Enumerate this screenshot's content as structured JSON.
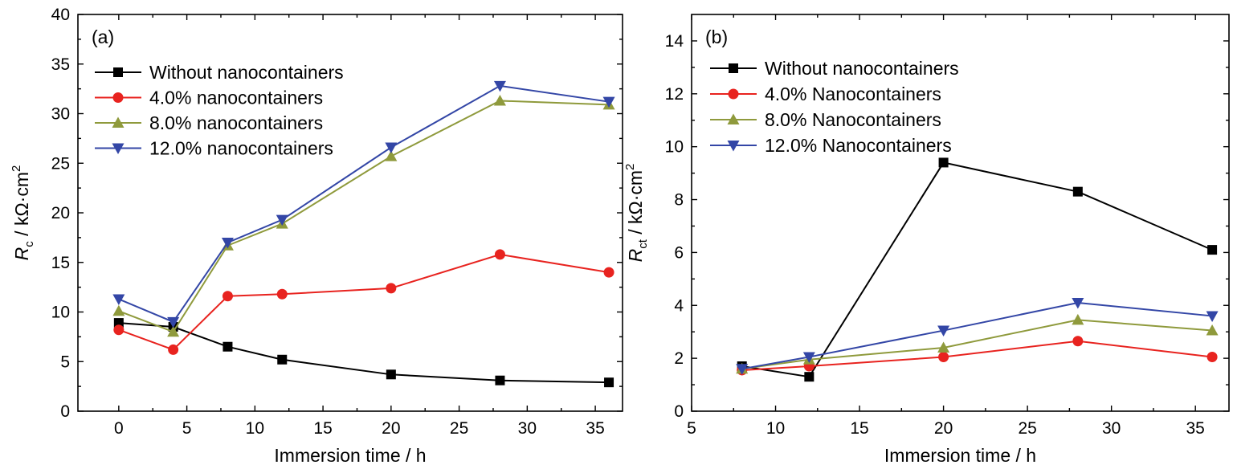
{
  "chart_data": [
    {
      "type": "line",
      "panel_label": "(a)",
      "xlabel": "Immersion time / h",
      "ylabel": {
        "symbol": "R",
        "subscript": "c",
        "unit": " / kΩ·cm",
        "superscript": "2"
      },
      "xlim": [
        -3,
        37
      ],
      "ylim": [
        0,
        40
      ],
      "xticks": [
        0,
        5,
        10,
        15,
        20,
        25,
        30,
        35
      ],
      "yticks": [
        0,
        5,
        10,
        15,
        20,
        25,
        30,
        35,
        40
      ],
      "legend_position": "top-left",
      "series": [
        {
          "name": "Without nanocontainers",
          "color": "#000000",
          "marker": "square",
          "x": [
            0,
            4,
            8,
            12,
            20,
            28,
            36
          ],
          "y": [
            8.9,
            8.5,
            6.5,
            5.2,
            3.7,
            3.1,
            2.9
          ]
        },
        {
          "name": "4.0% nanocontainers",
          "color": "#e8231f",
          "marker": "circle",
          "x": [
            0,
            4,
            8,
            12,
            20,
            28,
            36
          ],
          "y": [
            8.2,
            6.2,
            11.6,
            11.8,
            12.4,
            15.8,
            14.0
          ]
        },
        {
          "name": "8.0% nanocontainers",
          "color": "#8f9a3c",
          "marker": "triangle-up",
          "x": [
            0,
            4,
            8,
            12,
            20,
            28,
            36
          ],
          "y": [
            10.1,
            8.0,
            16.7,
            18.9,
            25.7,
            31.3,
            30.9
          ]
        },
        {
          "name": "12.0% nanocontainers",
          "color": "#3346a6",
          "marker": "triangle-down",
          "x": [
            0,
            4,
            8,
            12,
            20,
            28,
            36
          ],
          "y": [
            11.3,
            9.0,
            17.0,
            19.3,
            26.6,
            32.8,
            31.2
          ]
        }
      ]
    },
    {
      "type": "line",
      "panel_label": "(b)",
      "xlabel": "Immersion time / h",
      "ylabel": {
        "symbol": "R",
        "subscript": "ct",
        "unit": " / kΩ·cm",
        "superscript": "2"
      },
      "xlim": [
        5,
        37
      ],
      "ylim": [
        0,
        15
      ],
      "xticks": [
        5,
        10,
        15,
        20,
        25,
        30,
        35
      ],
      "yticks": [
        0,
        2,
        4,
        6,
        8,
        10,
        12,
        14
      ],
      "legend_position": "top-left",
      "series": [
        {
          "name": "Without nanocontainers",
          "color": "#000000",
          "marker": "square",
          "x": [
            8,
            12,
            20,
            28,
            36
          ],
          "y": [
            1.7,
            1.3,
            9.4,
            8.3,
            6.1
          ]
        },
        {
          "name": "4.0% Nanocontainers",
          "color": "#e8231f",
          "marker": "circle",
          "x": [
            8,
            12,
            20,
            28,
            36
          ],
          "y": [
            1.55,
            1.7,
            2.05,
            2.65,
            2.05
          ]
        },
        {
          "name": "8.0% Nanocontainers",
          "color": "#8f9a3c",
          "marker": "triangle-up",
          "x": [
            8,
            12,
            20,
            28,
            36
          ],
          "y": [
            1.6,
            1.95,
            2.4,
            3.45,
            3.05
          ]
        },
        {
          "name": "12.0% Nanocontainers",
          "color": "#3346a6",
          "marker": "triangle-down",
          "x": [
            8,
            12,
            20,
            28,
            36
          ],
          "y": [
            1.6,
            2.05,
            3.05,
            4.1,
            3.6
          ]
        }
      ]
    }
  ]
}
